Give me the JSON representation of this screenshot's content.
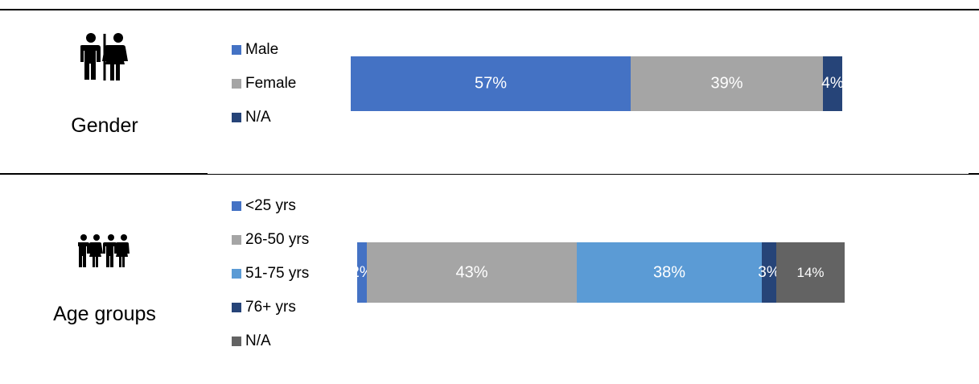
{
  "chart_data": [
    {
      "type": "bar",
      "orientation": "horizontal-stacked-100",
      "title": "Gender",
      "icon": "male-female-restroom-icon",
      "series": [
        {
          "name": "Male",
          "value": 57,
          "label": "57%",
          "color": "#4472C4"
        },
        {
          "name": "Female",
          "value": 39,
          "label": "39%",
          "color": "#A5A5A5"
        },
        {
          "name": "N/A",
          "value": 4,
          "label": "4%",
          "color": "#264478"
        }
      ]
    },
    {
      "type": "bar",
      "orientation": "horizontal-stacked-100",
      "title": "Age groups",
      "icon": "family-group-icon",
      "series": [
        {
          "name": "<25 yrs",
          "value": 2,
          "label": "2%",
          "color": "#4472C4"
        },
        {
          "name": "26-50 yrs",
          "value": 43,
          "label": "43%",
          "color": "#A5A5A5"
        },
        {
          "name": "51-75 yrs",
          "value": 38,
          "label": "38%",
          "color": "#5B9BD5"
        },
        {
          "name": "76+ yrs",
          "value": 3,
          "label": "3%",
          "color": "#264478"
        },
        {
          "name": "N/A",
          "value": 14,
          "label": "14%",
          "color": "#636363"
        }
      ]
    }
  ]
}
